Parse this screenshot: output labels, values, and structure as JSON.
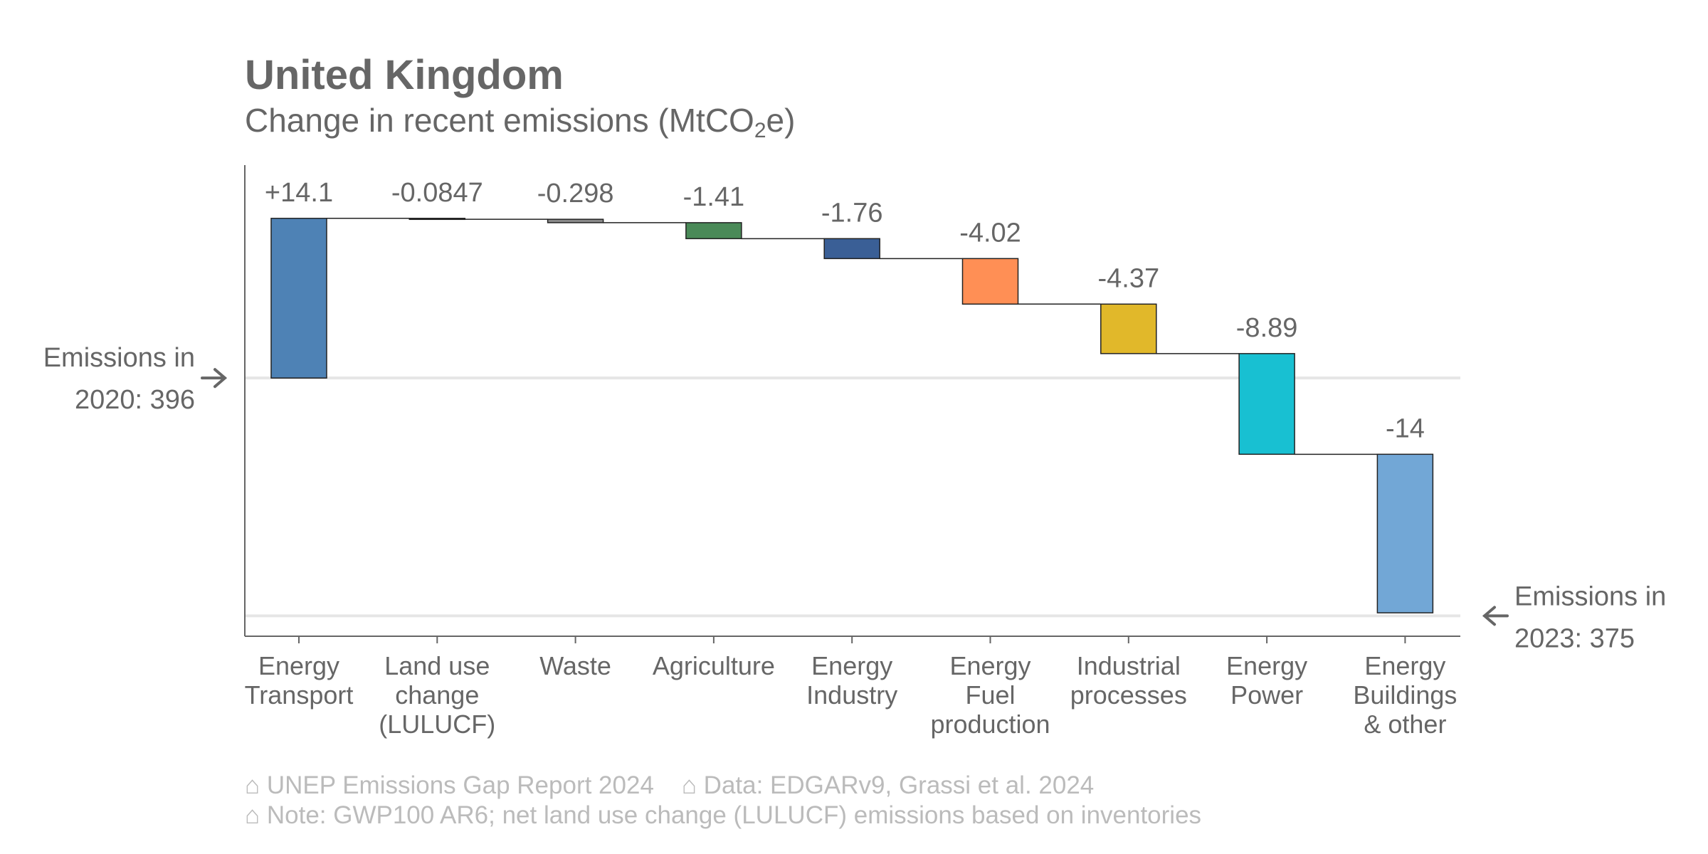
{
  "title": "United Kingdom",
  "subtitle_pre": "Change in recent emissions (MtCO",
  "subtitle_sub": "2",
  "subtitle_post": "e)",
  "chart_data": {
    "type": "waterfall",
    "start": {
      "label_line1": "Emissions in",
      "label_line2": "2020: 396",
      "value": 396
    },
    "end": {
      "label_line1": "Emissions in",
      "label_line2": "2023: 375",
      "value": 375
    },
    "categories": [
      {
        "lines": [
          "Energy",
          "Transport"
        ],
        "change": 14.1,
        "label": "+14.1",
        "color": "#4e82b5"
      },
      {
        "lines": [
          "Land use",
          "change",
          "(LULUCF)"
        ],
        "change": -0.0847,
        "label": "-0.0847",
        "color": "#3a3a3a"
      },
      {
        "lines": [
          "Waste"
        ],
        "change": -0.298,
        "label": "-0.298",
        "color": "#8a8a8a"
      },
      {
        "lines": [
          "Agriculture"
        ],
        "change": -1.41,
        "label": "-1.41",
        "color": "#4a8a58"
      },
      {
        "lines": [
          "Energy",
          "Industry"
        ],
        "change": -1.76,
        "label": "-1.76",
        "color": "#3a5f96"
      },
      {
        "lines": [
          "Energy",
          "Fuel",
          "production"
        ],
        "change": -4.02,
        "label": "-4.02",
        "color": "#ff8f55"
      },
      {
        "lines": [
          "Industrial",
          "processes"
        ],
        "change": -4.37,
        "label": "-4.37",
        "color": "#e1b82a"
      },
      {
        "lines": [
          "Energy",
          "Power"
        ],
        "change": -8.89,
        "label": "-8.89",
        "color": "#18c0d2"
      },
      {
        "lines": [
          "Energy",
          "Buildings",
          "& other"
        ],
        "change": -14,
        "label": "-14",
        "color": "#72a7d6"
      }
    ],
    "ylim": [
      373.2,
      414.8
    ]
  },
  "footer": {
    "line1": "⌂ UNEP Emissions Gap Report 2024    ⌂ Data: EDGARv9, Grassi et al. 2024",
    "line2": "⌂ Note: GWP100 AR6; net land use change (LULUCF) emissions based on inventories"
  }
}
